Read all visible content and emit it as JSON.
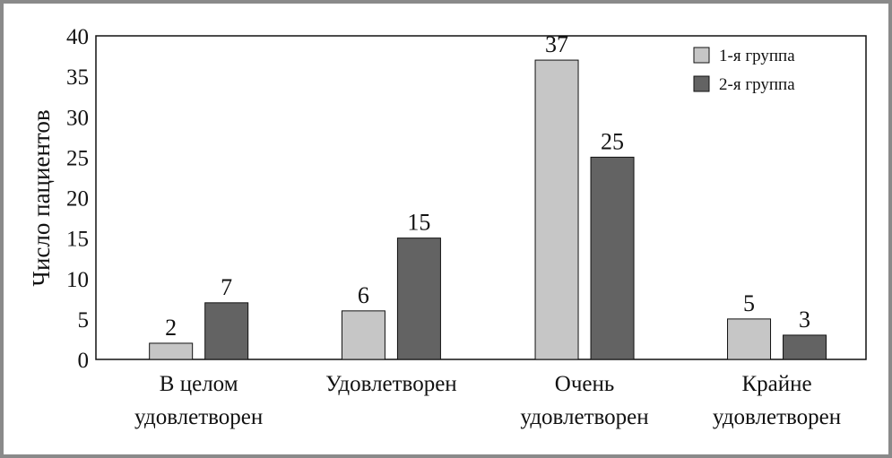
{
  "chart_data": {
    "type": "bar",
    "ylabel": "Число пациентов",
    "ylim": [
      0,
      40
    ],
    "yticks": [
      0,
      5,
      10,
      15,
      20,
      25,
      30,
      35,
      40
    ],
    "categories": [
      [
        "В целом",
        "удовлетворен"
      ],
      [
        "Удовлетворен"
      ],
      [
        "Очень",
        "удовлетворен"
      ],
      [
        "Крайне",
        "удовлетворен"
      ]
    ],
    "series": [
      {
        "name": "1-я группа",
        "values": [
          2,
          6,
          37,
          5
        ],
        "color": "#c6c6c6"
      },
      {
        "name": "2-я группа",
        "values": [
          7,
          15,
          25,
          3
        ],
        "color": "#636363"
      }
    ],
    "grid": false,
    "legend_position": "top-right"
  }
}
